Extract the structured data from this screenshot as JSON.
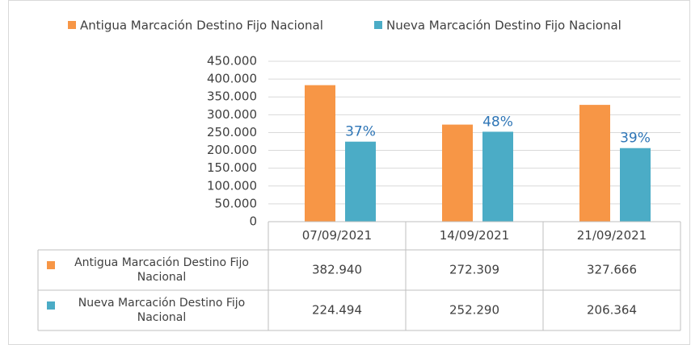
{
  "chart_data": {
    "type": "bar",
    "categories": [
      "07/09/2021",
      "14/09/2021",
      "21/09/2021"
    ],
    "series": [
      {
        "name": "Antigua Marcación Destino Fijo Nacional",
        "color": "#f79646",
        "values": [
          382940,
          272309,
          327666
        ],
        "value_labels": [
          "382.940",
          "272.309",
          "327.666"
        ]
      },
      {
        "name": "Nueva Marcación Destino Fijo Nacional",
        "color": "#4bacc6",
        "values": [
          224494,
          252290,
          206364
        ],
        "value_labels": [
          "224.494",
          "252.290",
          "206.364"
        ],
        "share_labels": [
          "37%",
          "48%",
          "39%"
        ]
      }
    ],
    "ylim": [
      0,
      450000
    ],
    "yticks": [
      0,
      {
        "value": 50000,
        "label": "50.000"
      },
      {
        "value": 100000,
        "label": "100.000"
      },
      {
        "value": 150000,
        "label": "150.000"
      },
      {
        "value": 200000,
        "label": "200.000"
      },
      {
        "value": 250000,
        "label": "250.000"
      },
      {
        "value": 300000,
        "label": "300.000"
      },
      {
        "value": 350000,
        "label": "350.000"
      },
      {
        "value": 400000,
        "label": "400.000"
      },
      {
        "value": 450000,
        "label": "450.000"
      }
    ],
    "grid": true,
    "legend": "top"
  }
}
